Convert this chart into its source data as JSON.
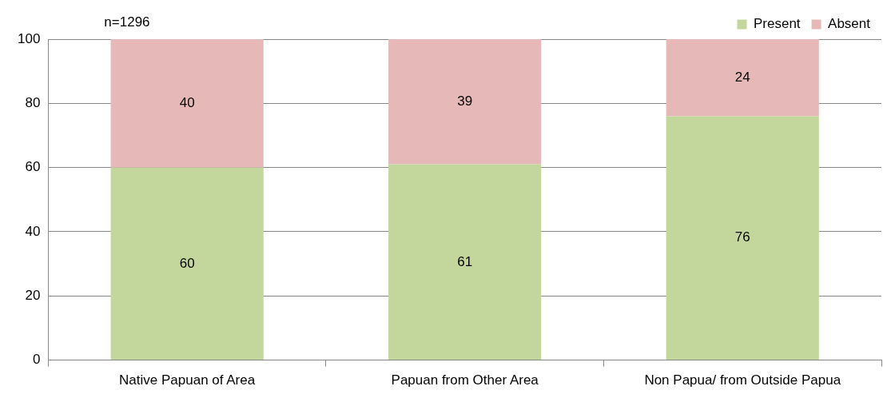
{
  "chart_data": {
    "type": "bar",
    "stacked": true,
    "categories": [
      "Native Papuan of Area",
      "Papuan from Other Area",
      "Non Papua/ from Outside Papua"
    ],
    "series": [
      {
        "name": "Present",
        "color": "#c3d69b",
        "values": [
          60,
          61,
          76
        ]
      },
      {
        "name": "Absent",
        "color": "#e6b9b8",
        "values": [
          40,
          39,
          24
        ]
      }
    ],
    "ylim": [
      0,
      100
    ],
    "yticks": [
      0,
      20,
      40,
      60,
      80,
      100
    ],
    "grid": "y",
    "legend": "top right",
    "data_labels": true,
    "annotations": [
      "n=1296"
    ]
  }
}
